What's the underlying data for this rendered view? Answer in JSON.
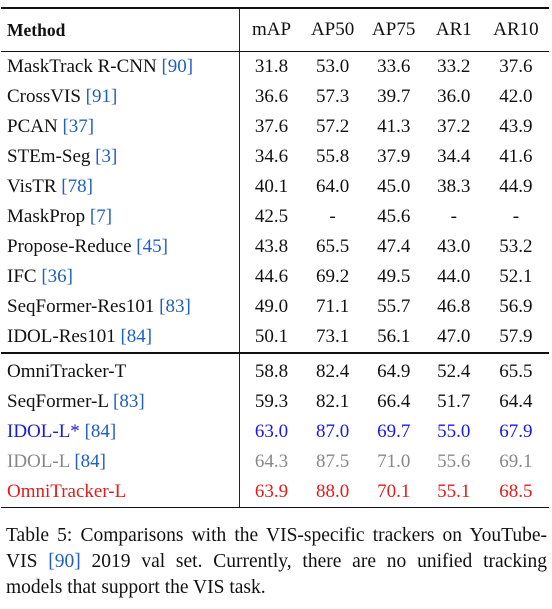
{
  "colors": {
    "citation": "#1f5fbf",
    "blue": "#1a1adc",
    "gray": "#888888",
    "red": "#e31b1b"
  },
  "table": {
    "headers": [
      "Method",
      "mAP",
      "AP50",
      "AP75",
      "AR1",
      "AR10"
    ],
    "group1": [
      {
        "name": "MaskTrack R-CNN",
        "cite": "[90]",
        "values": [
          "31.8",
          "53.0",
          "33.6",
          "33.2",
          "37.6"
        ]
      },
      {
        "name": "CrossVIS",
        "cite": "[91]",
        "values": [
          "36.6",
          "57.3",
          "39.7",
          "36.0",
          "42.0"
        ]
      },
      {
        "name": "PCAN",
        "cite": "[37]",
        "values": [
          "37.6",
          "57.2",
          "41.3",
          "37.2",
          "43.9"
        ]
      },
      {
        "name": "STEm-Seg",
        "cite": "[3]",
        "values": [
          "34.6",
          "55.8",
          "37.9",
          "34.4",
          "41.6"
        ]
      },
      {
        "name": "VisTR",
        "cite": "[78]",
        "values": [
          "40.1",
          "64.0",
          "45.0",
          "38.3",
          "44.9"
        ]
      },
      {
        "name": "MaskProp",
        "cite": "[7]",
        "values": [
          "42.5",
          "-",
          "45.6",
          "-",
          "-"
        ]
      },
      {
        "name": "Propose-Reduce",
        "cite": "[45]",
        "values": [
          "43.8",
          "65.5",
          "47.4",
          "43.0",
          "53.2"
        ]
      },
      {
        "name": "IFC",
        "cite": "[36]",
        "values": [
          "44.6",
          "69.2",
          "49.5",
          "44.0",
          "52.1"
        ]
      },
      {
        "name": "SeqFormer-Res101",
        "cite": "[83]",
        "values": [
          "49.0",
          "71.1",
          "55.7",
          "46.8",
          "56.9"
        ]
      },
      {
        "name": "IDOL-Res101",
        "cite": "[84]",
        "values": [
          "50.1",
          "73.1",
          "56.1",
          "47.0",
          "57.9"
        ]
      }
    ],
    "group2": [
      {
        "name": "OmniTracker-T",
        "cite": "",
        "values": [
          "58.8",
          "82.4",
          "64.9",
          "52.4",
          "65.5"
        ]
      },
      {
        "name": "SeqFormer-L",
        "cite": "[83]",
        "values": [
          "59.3",
          "82.1",
          "66.4",
          "51.7",
          "64.4"
        ]
      },
      {
        "name": "IDOL-L*",
        "cite": "[84]",
        "values": [
          "63.0",
          "87.0",
          "69.7",
          "55.0",
          "67.9"
        ],
        "style": "blue"
      },
      {
        "name": "IDOL-L",
        "cite": "[84]",
        "values": [
          "64.3",
          "87.5",
          "71.0",
          "55.6",
          "69.1"
        ],
        "style": "gray"
      },
      {
        "name": "OmniTracker-L",
        "cite": "",
        "values": [
          "63.9",
          "88.0",
          "70.1",
          "55.1",
          "68.5"
        ],
        "style": "red"
      }
    ]
  },
  "caption": {
    "prefix": "Table 5: Comparisons with the VIS-specific trackers on YouTube-VIS",
    "cite": "[90]",
    "suffix": "2019 val set. Currently, there are no unified tracking models that support the VIS task."
  }
}
